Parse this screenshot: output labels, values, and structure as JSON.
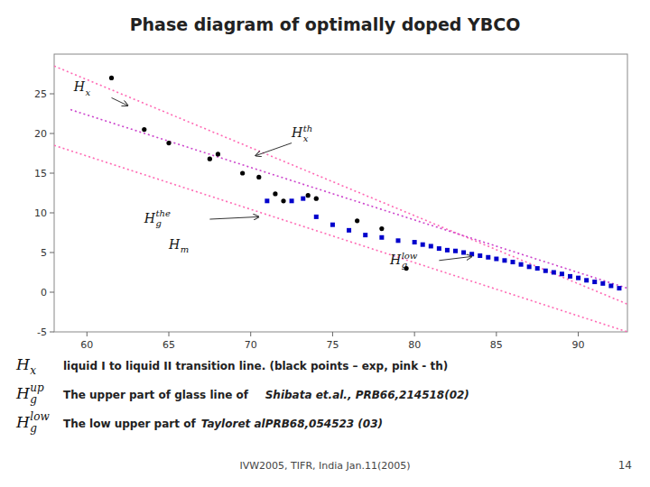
{
  "chart_data": {
    "type": "scatter",
    "title": "Phase diagram of optimally doped YBCO",
    "xlim": [
      58,
      93
    ],
    "ylim": [
      -5,
      30
    ],
    "xticks": [
      60,
      65,
      70,
      75,
      80,
      85,
      90
    ],
    "yticks": [
      -5,
      0,
      5,
      10,
      15,
      20,
      25
    ],
    "series": [
      {
        "type": "line",
        "x": [
          58,
          93
        ],
        "values": [
          28.5,
          -1.5
        ],
        "color": "#FF69B4",
        "line_style": "dotted"
      },
      {
        "type": "line",
        "x": [
          58,
          93
        ],
        "values": [
          18.5,
          -5.0
        ],
        "color": "#FF69B4",
        "line_style": "dotted"
      },
      {
        "type": "line",
        "x": [
          59,
          93
        ],
        "values": [
          23.0,
          0.5
        ],
        "color": "#CC44CC",
        "line_style": "dotted"
      },
      {
        "type": "scatter",
        "x": [
          61.5,
          63.5,
          65.0,
          67.5,
          68.0,
          69.5,
          70.5,
          71.5,
          72.0,
          73.5,
          74.0,
          76.5,
          78.0,
          79.5
        ],
        "values": [
          27.0,
          20.5,
          18.8,
          16.8,
          17.4,
          15.0,
          14.5,
          12.4,
          11.5,
          12.2,
          11.8,
          9.0,
          8.0,
          3.0
        ],
        "color": "#000000",
        "marker": "circle"
      },
      {
        "type": "scatter",
        "x": [
          71.0,
          72.5,
          73.2,
          74.0,
          75.0,
          76.0,
          77.0,
          78.0,
          79.0,
          80.0,
          80.5,
          81.0,
          81.5,
          82.0,
          82.5,
          83.0,
          83.5,
          84.0,
          84.5,
          85.0,
          85.5,
          86.0,
          86.5,
          87.0,
          87.5,
          88.0,
          88.5,
          89.0,
          89.5,
          90.0,
          90.5,
          91.0,
          91.5,
          92.0,
          92.5
        ],
        "values": [
          11.5,
          11.5,
          11.8,
          9.5,
          8.5,
          7.8,
          7.2,
          6.9,
          6.5,
          6.3,
          6.0,
          5.8,
          5.5,
          5.3,
          5.2,
          5.0,
          4.8,
          4.6,
          4.4,
          4.2,
          4.0,
          3.8,
          3.5,
          3.2,
          3.0,
          2.7,
          2.5,
          2.3,
          2.0,
          1.8,
          1.5,
          1.3,
          1.1,
          0.8,
          0.5
        ],
        "color": "#0000CC",
        "marker": "square"
      }
    ],
    "annotations": [
      {
        "text": "H",
        "sub": "x",
        "x": 59.2,
        "y": 25.3,
        "arrow": [
          61.5,
          24.5,
          62.5,
          23.5
        ]
      },
      {
        "text": "H",
        "sub": "x",
        "sup": "th",
        "x": 72.5,
        "y": 19.5,
        "arrow": [
          72.5,
          18.8,
          70.3,
          17.2
        ]
      },
      {
        "text": "H",
        "sub": "g",
        "sup": "the",
        "x": 63.5,
        "y": 8.8,
        "arrow": [
          67.5,
          9.2,
          70.5,
          9.5
        ]
      },
      {
        "text": "H",
        "sub": "m",
        "x": 65.0,
        "y": 5.5
      },
      {
        "text": "H",
        "sub": "g",
        "sup": "low",
        "x": 78.5,
        "y": 3.5,
        "arrow": [
          81.5,
          4.0,
          83.5,
          4.5
        ]
      }
    ],
    "notes": [
      {
        "symbol": {
          "text": "H",
          "sub": "x"
        },
        "text": "liquid I to liquid II transition line. (black points – exp, pink - th)"
      },
      {
        "symbol": {
          "text": "H",
          "sub": "g",
          "sup": "up"
        },
        "text": "The upper part of glass line of    ",
        "ref": "Shibata et.al., PRB66,214518(02)"
      },
      {
        "symbol": {
          "text": "H",
          "sub": "g",
          "sup": "low"
        },
        "text": "The low upper part of ",
        "ref": "Tayloret alPRB68,054523 (03)"
      }
    ],
    "footer": "IVW2005, TIFR, India Jan.11(2005)",
    "page_number": "14"
  }
}
